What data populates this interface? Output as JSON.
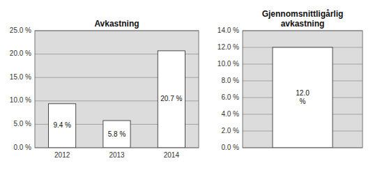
{
  "chart_data": [
    {
      "type": "bar",
      "title": "Avkastning",
      "categories": [
        "2012",
        "2013",
        "2014"
      ],
      "values": [
        9.4,
        5.8,
        20.7
      ],
      "value_labels": [
        "9.4 %",
        "5.8 %",
        "20.7 %"
      ],
      "data_labels": true,
      "color": "white",
      "ylim": [
        0,
        25
      ],
      "yticks": [
        {
          "value": 0,
          "label": "0.0 %"
        },
        {
          "value": 5,
          "label": "5.0 %"
        },
        {
          "value": 10,
          "label": "10.0 %"
        },
        {
          "value": 15,
          "label": "15.0 %"
        },
        {
          "value": 20,
          "label": "20.0 %"
        },
        {
          "value": 25,
          "label": "25.0 %"
        }
      ],
      "grid": true
    },
    {
      "type": "bar",
      "title": "Gjennomsnittligårlig\navkastning",
      "categories": [
        null
      ],
      "values": [
        12.0
      ],
      "value_labels": [
        "12.0\n%"
      ],
      "data_labels": true,
      "color": "white",
      "ylim": [
        0,
        14
      ],
      "yticks": [
        {
          "value": 0,
          "label": "0.0 %"
        },
        {
          "value": 2,
          "label": "2.0 %"
        },
        {
          "value": 4,
          "label": "4.0 %"
        },
        {
          "value": 6,
          "label": "6.0 %"
        },
        {
          "value": 8,
          "label": "8.0 %"
        },
        {
          "value": 10,
          "label": "10.0 %"
        },
        {
          "value": 12,
          "label": "12.0 %"
        },
        {
          "value": 14,
          "label": "14.0 %"
        }
      ],
      "grid": true,
      "tick_labels": "y"
    }
  ]
}
